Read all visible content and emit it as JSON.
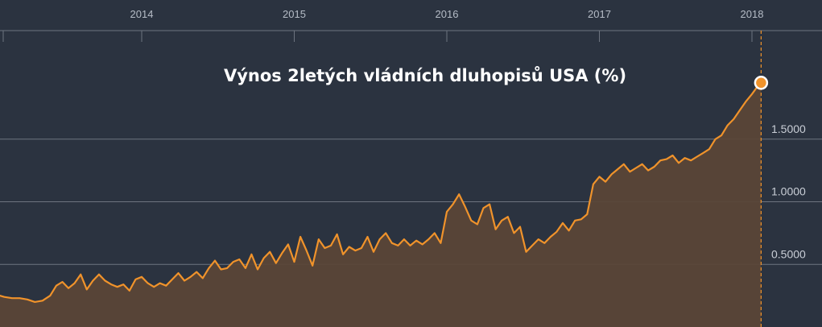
{
  "colors": {
    "background": "#2b3340",
    "line": "#f0932b",
    "area": "#5a4637",
    "grid": "#6d7480",
    "marker": "#f0932b"
  },
  "chart_data": {
    "type": "area",
    "title": "Výnos 2letých vládních dluhopisů USA (%)",
    "x_axis": {
      "position": "top",
      "tick_labels": [
        "2014",
        "2015",
        "2016",
        "2017",
        "2018"
      ],
      "range": [
        2013.07,
        2018.45
      ]
    },
    "y_axis": {
      "position": "right",
      "tick_labels": [
        "0.5000",
        "1.0000",
        "1.5000"
      ],
      "tick_values": [
        0.5,
        1.0,
        1.5
      ],
      "range": [
        0,
        2.6
      ],
      "grid": true
    },
    "series": [
      {
        "values": [
          [
            2013.07,
            0.25
          ],
          [
            2013.1,
            0.24
          ],
          [
            2013.15,
            0.23
          ],
          [
            2013.2,
            0.23
          ],
          [
            2013.25,
            0.22
          ],
          [
            2013.3,
            0.2
          ],
          [
            2013.35,
            0.21
          ],
          [
            2013.4,
            0.25
          ],
          [
            2013.44,
            0.33
          ],
          [
            2013.48,
            0.36
          ],
          [
            2013.52,
            0.31
          ],
          [
            2013.56,
            0.35
          ],
          [
            2013.6,
            0.42
          ],
          [
            2013.64,
            0.3
          ],
          [
            2013.68,
            0.37
          ],
          [
            2013.72,
            0.42
          ],
          [
            2013.76,
            0.37
          ],
          [
            2013.8,
            0.34
          ],
          [
            2013.84,
            0.32
          ],
          [
            2013.88,
            0.34
          ],
          [
            2013.92,
            0.29
          ],
          [
            2013.96,
            0.38
          ],
          [
            2014.0,
            0.4
          ],
          [
            2014.04,
            0.35
          ],
          [
            2014.08,
            0.32
          ],
          [
            2014.12,
            0.35
          ],
          [
            2014.16,
            0.33
          ],
          [
            2014.2,
            0.38
          ],
          [
            2014.24,
            0.43
          ],
          [
            2014.28,
            0.37
          ],
          [
            2014.32,
            0.4
          ],
          [
            2014.36,
            0.44
          ],
          [
            2014.4,
            0.39
          ],
          [
            2014.44,
            0.47
          ],
          [
            2014.48,
            0.53
          ],
          [
            2014.52,
            0.46
          ],
          [
            2014.56,
            0.47
          ],
          [
            2014.6,
            0.52
          ],
          [
            2014.64,
            0.54
          ],
          [
            2014.68,
            0.47
          ],
          [
            2014.72,
            0.58
          ],
          [
            2014.76,
            0.46
          ],
          [
            2014.8,
            0.55
          ],
          [
            2014.84,
            0.6
          ],
          [
            2014.88,
            0.51
          ],
          [
            2014.92,
            0.59
          ],
          [
            2014.96,
            0.66
          ],
          [
            2015.0,
            0.52
          ],
          [
            2015.04,
            0.72
          ],
          [
            2015.08,
            0.61
          ],
          [
            2015.12,
            0.49
          ],
          [
            2015.16,
            0.7
          ],
          [
            2015.2,
            0.63
          ],
          [
            2015.24,
            0.65
          ],
          [
            2015.28,
            0.74
          ],
          [
            2015.32,
            0.58
          ],
          [
            2015.36,
            0.64
          ],
          [
            2015.4,
            0.61
          ],
          [
            2015.44,
            0.63
          ],
          [
            2015.48,
            0.72
          ],
          [
            2015.52,
            0.6
          ],
          [
            2015.56,
            0.7
          ],
          [
            2015.6,
            0.75
          ],
          [
            2015.64,
            0.67
          ],
          [
            2015.68,
            0.65
          ],
          [
            2015.72,
            0.7
          ],
          [
            2015.76,
            0.65
          ],
          [
            2015.8,
            0.69
          ],
          [
            2015.84,
            0.66
          ],
          [
            2015.88,
            0.7
          ],
          [
            2015.92,
            0.75
          ],
          [
            2015.96,
            0.67
          ],
          [
            2016.0,
            0.92
          ],
          [
            2016.04,
            0.98
          ],
          [
            2016.08,
            1.06
          ],
          [
            2016.12,
            0.96
          ],
          [
            2016.16,
            0.85
          ],
          [
            2016.2,
            0.82
          ],
          [
            2016.24,
            0.95
          ],
          [
            2016.28,
            0.98
          ],
          [
            2016.32,
            0.78
          ],
          [
            2016.36,
            0.85
          ],
          [
            2016.4,
            0.88
          ],
          [
            2016.44,
            0.75
          ],
          [
            2016.48,
            0.8
          ],
          [
            2016.52,
            0.6
          ],
          [
            2016.56,
            0.65
          ],
          [
            2016.6,
            0.7
          ],
          [
            2016.64,
            0.67
          ],
          [
            2016.68,
            0.72
          ],
          [
            2016.72,
            0.76
          ],
          [
            2016.76,
            0.83
          ],
          [
            2016.8,
            0.77
          ],
          [
            2016.84,
            0.85
          ],
          [
            2016.88,
            0.86
          ],
          [
            2016.92,
            0.9
          ],
          [
            2016.96,
            1.14
          ],
          [
            2017.0,
            1.2
          ],
          [
            2017.04,
            1.16
          ],
          [
            2017.08,
            1.22
          ],
          [
            2017.12,
            1.26
          ],
          [
            2017.16,
            1.3
          ],
          [
            2017.2,
            1.24
          ],
          [
            2017.24,
            1.27
          ],
          [
            2017.28,
            1.3
          ],
          [
            2017.32,
            1.25
          ],
          [
            2017.36,
            1.28
          ],
          [
            2017.4,
            1.33
          ],
          [
            2017.44,
            1.34
          ],
          [
            2017.48,
            1.37
          ],
          [
            2017.52,
            1.31
          ],
          [
            2017.56,
            1.35
          ],
          [
            2017.6,
            1.33
          ],
          [
            2017.64,
            1.36
          ],
          [
            2017.68,
            1.39
          ],
          [
            2017.72,
            1.42
          ],
          [
            2017.76,
            1.5
          ],
          [
            2017.8,
            1.53
          ],
          [
            2017.84,
            1.61
          ],
          [
            2017.88,
            1.66
          ],
          [
            2017.92,
            1.73
          ],
          [
            2017.96,
            1.8
          ],
          [
            2018.0,
            1.86
          ],
          [
            2018.03,
            1.91
          ],
          [
            2018.06,
            1.95
          ]
        ]
      }
    ],
    "annotations": {
      "last_point_marker": {
        "x": 2018.06,
        "y": 1.95
      },
      "dashed_vertical_line_at_x": 2018.06
    }
  }
}
